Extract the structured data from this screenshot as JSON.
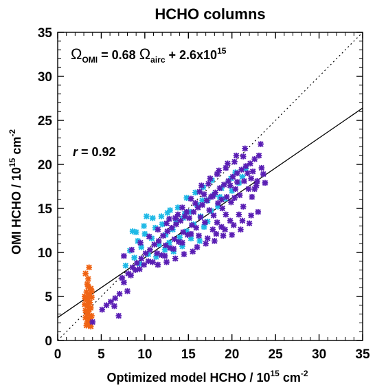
{
  "chart_data": {
    "type": "scatter",
    "title": "HCHO columns",
    "xlabel": {
      "prefix": "Optimized model HCHO / 10",
      "exp": "15",
      "mid": " cm",
      "exp2": "-2"
    },
    "ylabel": {
      "prefix": "OMI HCHO / 10",
      "exp": "15",
      "mid": " cm",
      "exp2": "-2"
    },
    "xlim": [
      0,
      35
    ],
    "ylim": [
      0,
      35
    ],
    "xticks": [
      0,
      5,
      10,
      15,
      20,
      25,
      30,
      35
    ],
    "yticks": [
      0,
      5,
      10,
      15,
      20,
      25,
      30,
      35
    ],
    "grid": false,
    "annotations": {
      "fit_equation": {
        "omega": "Ω",
        "omi_sub": "OMI",
        "eq1": " =  0.68 ",
        "airc_sub": "airc",
        "eq2": " +  2.6x10",
        "exp": "15"
      },
      "correlation": {
        "r": "r",
        "value": " = 0.92"
      }
    },
    "fit_line": {
      "slope": 0.68,
      "intercept": 2.6
    },
    "one_to_one_line": {
      "slope": 1,
      "intercept": 0
    },
    "colors": {
      "orange": "#f06414",
      "cyan": "#1eb9e6",
      "purple": "#5a1eb4",
      "line": "#000000"
    },
    "series": [
      {
        "color": "orange",
        "points": [
          [
            3.2,
            7.6
          ],
          [
            3.6,
            8.3
          ],
          [
            3.5,
            7.0
          ],
          [
            3.4,
            6.4
          ],
          [
            3.8,
            5.9
          ],
          [
            3.3,
            5.5
          ],
          [
            3.6,
            5.2
          ],
          [
            3.9,
            4.9
          ],
          [
            3.2,
            4.7
          ],
          [
            3.5,
            4.5
          ],
          [
            3.7,
            4.3
          ],
          [
            3.1,
            4.1
          ],
          [
            3.4,
            3.9
          ],
          [
            3.8,
            3.7
          ],
          [
            3.6,
            3.5
          ],
          [
            3.3,
            3.2
          ],
          [
            3.5,
            3.0
          ],
          [
            3.9,
            2.8
          ],
          [
            3.2,
            2.6
          ],
          [
            3.6,
            2.3
          ],
          [
            3.4,
            2.1
          ],
          [
            3.7,
            1.9
          ],
          [
            3.3,
            1.7
          ],
          [
            3.8,
            1.6
          ],
          [
            3.1,
            5.0
          ],
          [
            3.9,
            5.6
          ],
          [
            3.5,
            6.1
          ],
          [
            3.2,
            3.4
          ],
          [
            3.7,
            2.5
          ],
          [
            3.4,
            4.8
          ]
        ]
      },
      {
        "color": "cyan",
        "points": [
          [
            7.8,
            8.5
          ],
          [
            8.3,
            10.2
          ],
          [
            8.8,
            9.4
          ],
          [
            9.2,
            11.3
          ],
          [
            9.6,
            10.6
          ],
          [
            10.0,
            12.1
          ],
          [
            10.4,
            9.8
          ],
          [
            10.8,
            11.6
          ],
          [
            11.2,
            12.8
          ],
          [
            11.6,
            10.9
          ],
          [
            12.0,
            13.2
          ],
          [
            12.4,
            12.0
          ],
          [
            12.8,
            11.1
          ],
          [
            13.2,
            12.6
          ],
          [
            13.6,
            13.6
          ],
          [
            14.0,
            11.7
          ],
          [
            14.4,
            13.9
          ],
          [
            14.8,
            12.4
          ],
          [
            15.2,
            14.6
          ],
          [
            15.6,
            13.2
          ],
          [
            16.0,
            15.4
          ],
          [
            16.4,
            14.1
          ],
          [
            16.8,
            12.9
          ],
          [
            17.2,
            15.9
          ],
          [
            17.6,
            14.7
          ],
          [
            18.0,
            16.6
          ],
          [
            18.4,
            15.2
          ],
          [
            18.8,
            17.3
          ],
          [
            19.2,
            16.1
          ],
          [
            19.6,
            18.1
          ],
          [
            20.0,
            17.0
          ],
          [
            20.4,
            19.1
          ],
          [
            20.8,
            17.9
          ],
          [
            21.2,
            18.6
          ],
          [
            21.6,
            19.5
          ],
          [
            9.0,
            12.3
          ],
          [
            9.9,
            13.0
          ],
          [
            10.9,
            13.9
          ],
          [
            11.9,
            14.1
          ],
          [
            12.9,
            14.8
          ],
          [
            13.8,
            15.1
          ],
          [
            14.8,
            16.2
          ],
          [
            15.8,
            16.8
          ],
          [
            16.7,
            17.4
          ],
          [
            17.7,
            18.2
          ],
          [
            11.3,
            9.5
          ],
          [
            12.3,
            10.3
          ],
          [
            13.3,
            10.1
          ],
          [
            14.3,
            10.7
          ],
          [
            15.3,
            11.6
          ],
          [
            16.3,
            11.3
          ],
          [
            8.6,
            12.4
          ],
          [
            10.2,
            14.1
          ],
          [
            12.6,
            14.5
          ],
          [
            14.6,
            14.4
          ],
          [
            16.6,
            15.9
          ],
          [
            18.6,
            16.3
          ],
          [
            19.9,
            18.4
          ],
          [
            17.2,
            13.5
          ],
          [
            9.4,
            8.7
          ]
        ]
      },
      {
        "color": "purple",
        "points": [
          [
            4.0,
            2.1
          ],
          [
            5.1,
            3.5
          ],
          [
            5.6,
            4.0
          ],
          [
            6.1,
            4.4
          ],
          [
            6.6,
            4.8
          ],
          [
            7.1,
            5.3
          ],
          [
            7.6,
            6.6
          ],
          [
            8.1,
            7.6
          ],
          [
            8.6,
            8.3
          ],
          [
            9.1,
            8.8
          ],
          [
            9.6,
            9.3
          ],
          [
            10.1,
            9.9
          ],
          [
            10.6,
            10.3
          ],
          [
            11.1,
            10.9
          ],
          [
            11.6,
            11.3
          ],
          [
            12.1,
            11.9
          ],
          [
            12.6,
            12.4
          ],
          [
            13.1,
            12.8
          ],
          [
            13.6,
            13.2
          ],
          [
            14.1,
            13.6
          ],
          [
            14.6,
            14.1
          ],
          [
            15.1,
            13.9
          ],
          [
            15.6,
            14.6
          ],
          [
            16.1,
            15.1
          ],
          [
            16.6,
            15.4
          ],
          [
            17.1,
            15.9
          ],
          [
            17.6,
            16.3
          ],
          [
            18.1,
            16.8
          ],
          [
            18.6,
            17.3
          ],
          [
            19.1,
            17.7
          ],
          [
            19.6,
            18.1
          ],
          [
            20.1,
            18.6
          ],
          [
            20.6,
            19.0
          ],
          [
            21.1,
            19.4
          ],
          [
            21.6,
            19.8
          ],
          [
            22.1,
            20.1
          ],
          [
            22.6,
            20.6
          ],
          [
            23.1,
            21.0
          ],
          [
            23.3,
            22.3
          ],
          [
            22.4,
            19.2
          ],
          [
            21.4,
            18.1
          ],
          [
            20.4,
            17.2
          ],
          [
            19.4,
            16.3
          ],
          [
            18.4,
            15.6
          ],
          [
            17.4,
            14.8
          ],
          [
            16.4,
            14.0
          ],
          [
            15.4,
            13.1
          ],
          [
            14.4,
            12.3
          ],
          [
            13.4,
            11.5
          ],
          [
            12.4,
            10.8
          ],
          [
            11.4,
            9.9
          ],
          [
            10.4,
            9.0
          ],
          [
            9.4,
            8.1
          ],
          [
            8.4,
            7.4
          ],
          [
            7.4,
            7.1
          ],
          [
            18.2,
            12.1
          ],
          [
            19.2,
            12.6
          ],
          [
            20.2,
            13.1
          ],
          [
            21.2,
            13.6
          ],
          [
            17.2,
            11.6
          ],
          [
            16.2,
            11.9
          ],
          [
            22.2,
            14.2
          ],
          [
            20.3,
            16.2
          ],
          [
            19.3,
            14.3
          ],
          [
            18.3,
            13.4
          ],
          [
            21.3,
            15.2
          ],
          [
            22.3,
            16.3
          ],
          [
            15.3,
            12.1
          ],
          [
            14.3,
            11.1
          ],
          [
            13.3,
            10.4
          ],
          [
            12.3,
            9.6
          ],
          [
            17.3,
            17.8
          ],
          [
            18.3,
            18.9
          ],
          [
            19.3,
            19.6
          ],
          [
            20.3,
            20.3
          ],
          [
            21.3,
            20.9
          ],
          [
            16.3,
            16.9
          ],
          [
            15.3,
            16.1
          ],
          [
            14.3,
            15.1
          ],
          [
            20.8,
            14.3
          ],
          [
            19.8,
            13.6
          ],
          [
            18.8,
            12.9
          ],
          [
            17.8,
            12.6
          ],
          [
            22.8,
            17.6
          ],
          [
            23.6,
            18.9
          ],
          [
            22.9,
            18.1
          ],
          [
            21.9,
            17.2
          ],
          [
            20.9,
            16.5
          ],
          [
            19.9,
            15.7
          ],
          [
            18.9,
            15.0
          ],
          [
            17.9,
            14.2
          ],
          [
            16.9,
            13.4
          ],
          [
            15.9,
            12.8
          ],
          [
            14.9,
            12.0
          ],
          [
            13.9,
            11.2
          ],
          [
            12.9,
            10.5
          ],
          [
            11.9,
            9.7
          ],
          [
            10.9,
            8.9
          ],
          [
            9.9,
            8.6
          ],
          [
            8.9,
            8.0
          ],
          [
            16.5,
            17.6
          ],
          [
            17.5,
            18.4
          ],
          [
            18.5,
            19.3
          ],
          [
            19.5,
            20.1
          ],
          [
            20.5,
            21.0
          ],
          [
            21.5,
            21.8
          ],
          [
            13.5,
            13.9
          ],
          [
            12.5,
            13.3
          ],
          [
            11.5,
            12.6
          ],
          [
            10.5,
            11.8
          ],
          [
            9.5,
            11.1
          ],
          [
            8.5,
            10.3
          ],
          [
            7.6,
            9.6
          ],
          [
            16.0,
            10.6
          ],
          [
            17.0,
            11.0
          ],
          [
            18.0,
            11.3
          ],
          [
            19.0,
            11.9
          ],
          [
            20.0,
            12.0
          ],
          [
            15.5,
            10.1
          ],
          [
            14.5,
            9.8
          ],
          [
            13.5,
            9.3
          ],
          [
            12.5,
            8.9
          ],
          [
            11.5,
            8.6
          ],
          [
            21.0,
            12.6
          ],
          [
            22.0,
            13.3
          ],
          [
            23.0,
            14.6
          ],
          [
            6.5,
            3.9
          ],
          [
            7.0,
            2.8
          ],
          [
            8.0,
            5.6
          ],
          [
            17.8,
            16.4
          ],
          [
            18.8,
            16.0
          ],
          [
            19.8,
            17.6
          ],
          [
            20.6,
            18.0
          ],
          [
            21.8,
            19.0
          ],
          [
            16.8,
            16.6
          ],
          [
            15.8,
            15.6
          ],
          [
            14.8,
            14.6
          ],
          [
            13.8,
            14.3
          ],
          [
            12.8,
            13.8
          ],
          [
            22.2,
            18.4
          ],
          [
            23.8,
            17.9
          ],
          [
            23.4,
            19.6
          ],
          [
            22.6,
            17.2
          ]
        ]
      }
    ]
  }
}
